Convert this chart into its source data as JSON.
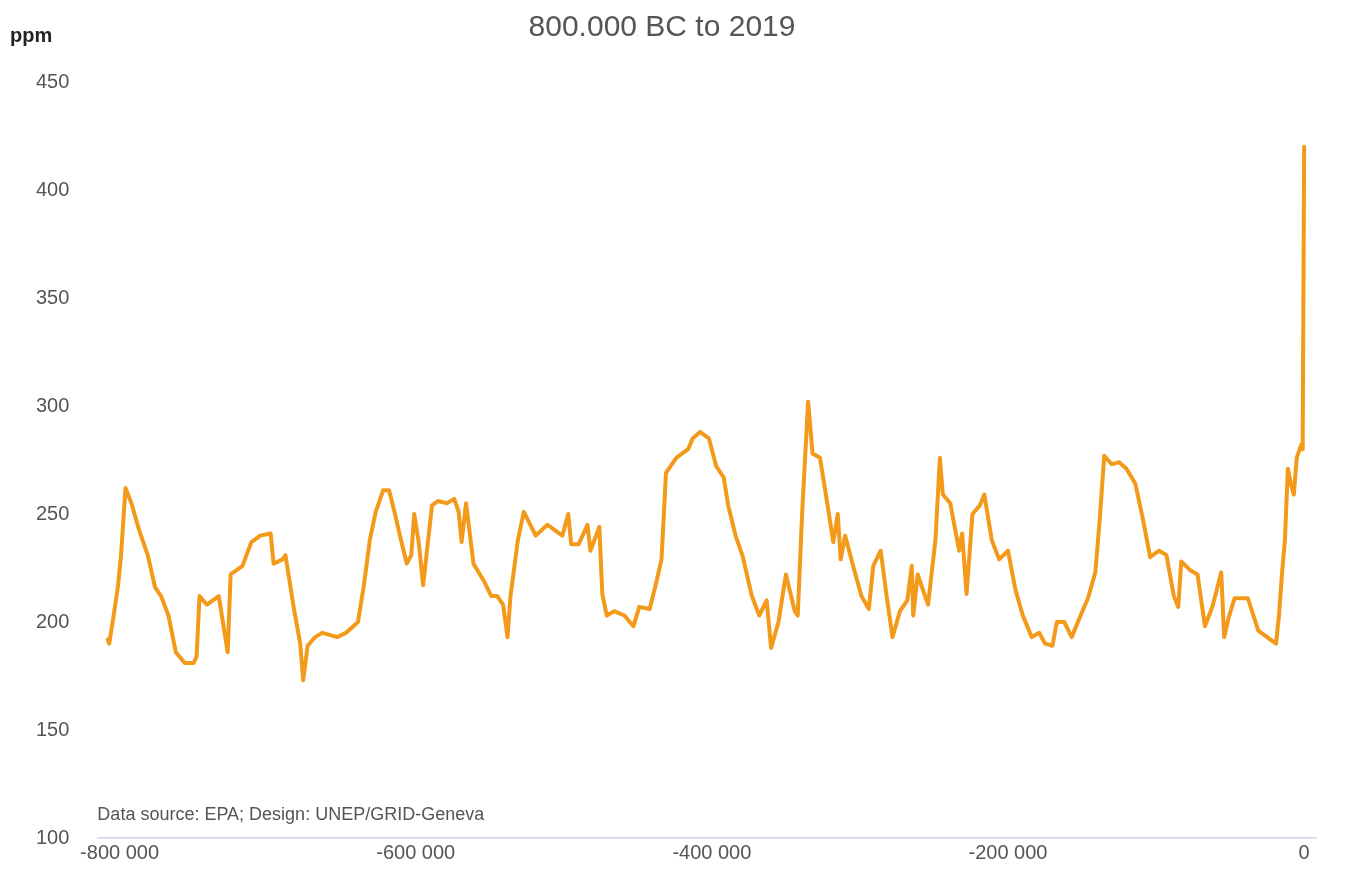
{
  "chart_data": {
    "type": "line",
    "title": "800.000 BC to 2019",
    "ylabel": "ppm",
    "annotations": [
      "Data source: EPA; Design: UNEP/GRID-Geneva"
    ],
    "xlim": [
      -815000,
      8000
    ],
    "ylim": [
      100,
      450
    ],
    "xticks": [
      {
        "value": -800000,
        "label": "-800 000"
      },
      {
        "value": -600000,
        "label": "-600 000"
      },
      {
        "value": -400000,
        "label": "-400 000"
      },
      {
        "value": -200000,
        "label": "-200 000"
      },
      0
    ],
    "yticks": [
      100,
      150,
      200,
      250,
      300,
      350,
      400,
      450
    ],
    "grid": false,
    "legend": false,
    "marker": "none",
    "line_style": "solid",
    "series": [
      {
        "color": "#f39a1a",
        "x": [
          -808000,
          -807000,
          -804000,
          -801000,
          -799000,
          -796000,
          -792000,
          -787000,
          -781000,
          -776000,
          -772000,
          -767000,
          -762000,
          -756000,
          -750000,
          -748000,
          -746000,
          -741000,
          -733000,
          -727000,
          -725000,
          -717000,
          -711000,
          -705000,
          -698000,
          -696000,
          -690000,
          -688000,
          -682000,
          -678000,
          -676000,
          -673000,
          -668000,
          -663000,
          -653000,
          -647000,
          -639000,
          -635000,
          -631000,
          -627000,
          -622000,
          -618000,
          -614000,
          -610000,
          -606000,
          -603000,
          -601000,
          -598000,
          -595000,
          -589000,
          -585000,
          -579000,
          -574000,
          -571000,
          -569000,
          -566000,
          -561000,
          -554000,
          -549000,
          -545000,
          -541000,
          -538000,
          -536000,
          -531000,
          -527000,
          -519000,
          -511000,
          -501000,
          -497000,
          -495000,
          -490000,
          -484000,
          -482000,
          -476000,
          -474000,
          -471000,
          -466000,
          -459000,
          -453000,
          -449000,
          -442000,
          -438000,
          -434000,
          -431000,
          -424000,
          -416000,
          -413000,
          -408000,
          -402000,
          -397000,
          -392000,
          -389000,
          -384000,
          -379000,
          -373000,
          -368000,
          -363000,
          -360000,
          -355000,
          -350000,
          -344000,
          -342000,
          -339000,
          -335000,
          -332000,
          -327000,
          -323000,
          -318000,
          -315000,
          -313000,
          -310000,
          -305000,
          -299000,
          -294000,
          -291000,
          -286000,
          -282000,
          -278000,
          -273000,
          -268000,
          -265000,
          -264000,
          -261000,
          -254000,
          -249000,
          -246000,
          -244000,
          -239000,
          -233000,
          -231000,
          -228000,
          -224000,
          -219000,
          -216000,
          -211000,
          -206000,
          -200000,
          -195000,
          -190000,
          -184000,
          -179000,
          -175000,
          -170000,
          -167000,
          -162000,
          -157000,
          -151000,
          -146000,
          -141000,
          -138000,
          -135000,
          -130000,
          -125000,
          -120000,
          -114000,
          -109000,
          -104000,
          -98000,
          -93000,
          -88000,
          -85000,
          -83000,
          -77000,
          -72000,
          -67000,
          -62000,
          -56000,
          -54000,
          -51000,
          -47000,
          -38000,
          -31000,
          -25000,
          -19000,
          -17000,
          -15000,
          -13000,
          -11000,
          -9000,
          -7000,
          -5000,
          -2000,
          -1000,
          0
        ],
        "values": [
          192,
          190,
          203,
          217,
          231,
          262,
          255,
          243,
          231,
          216,
          212,
          203,
          186,
          181,
          181,
          184,
          212,
          208,
          212,
          186,
          222,
          226,
          237,
          240,
          241,
          227,
          229,
          231,
          205,
          190,
          173,
          189,
          193,
          195,
          193,
          195,
          200,
          217,
          238,
          251,
          261,
          261,
          250,
          238,
          227,
          231,
          250,
          237,
          217,
          254,
          256,
          255,
          257,
          251,
          237,
          255,
          227,
          219,
          212,
          212,
          208,
          193,
          212,
          238,
          251,
          240,
          245,
          240,
          250,
          236,
          236,
          245,
          233,
          244,
          213,
          203,
          205,
          203,
          198,
          207,
          206,
          217,
          229,
          269,
          276,
          280,
          285,
          288,
          285,
          272,
          267,
          254,
          240,
          230,
          212,
          203,
          210,
          188,
          200,
          222,
          205,
          203,
          251,
          302,
          278,
          276,
          259,
          237,
          250,
          229,
          240,
          227,
          212,
          206,
          226,
          233,
          212,
          193,
          205,
          210,
          226,
          203,
          222,
          208,
          238,
          276,
          259,
          255,
          233,
          241,
          213,
          250,
          254,
          259,
          238,
          229,
          233,
          215,
          203,
          193,
          195,
          190,
          189,
          200,
          200,
          193,
          203,
          211,
          223,
          248,
          277,
          273,
          274,
          271,
          264,
          248,
          230,
          233,
          231,
          212,
          207,
          228,
          224,
          222,
          198,
          207,
          223,
          193,
          202,
          211,
          211,
          196,
          193,
          190,
          203,
          222,
          238,
          271,
          264,
          259,
          276,
          282,
          280,
          420
        ]
      }
    ]
  }
}
